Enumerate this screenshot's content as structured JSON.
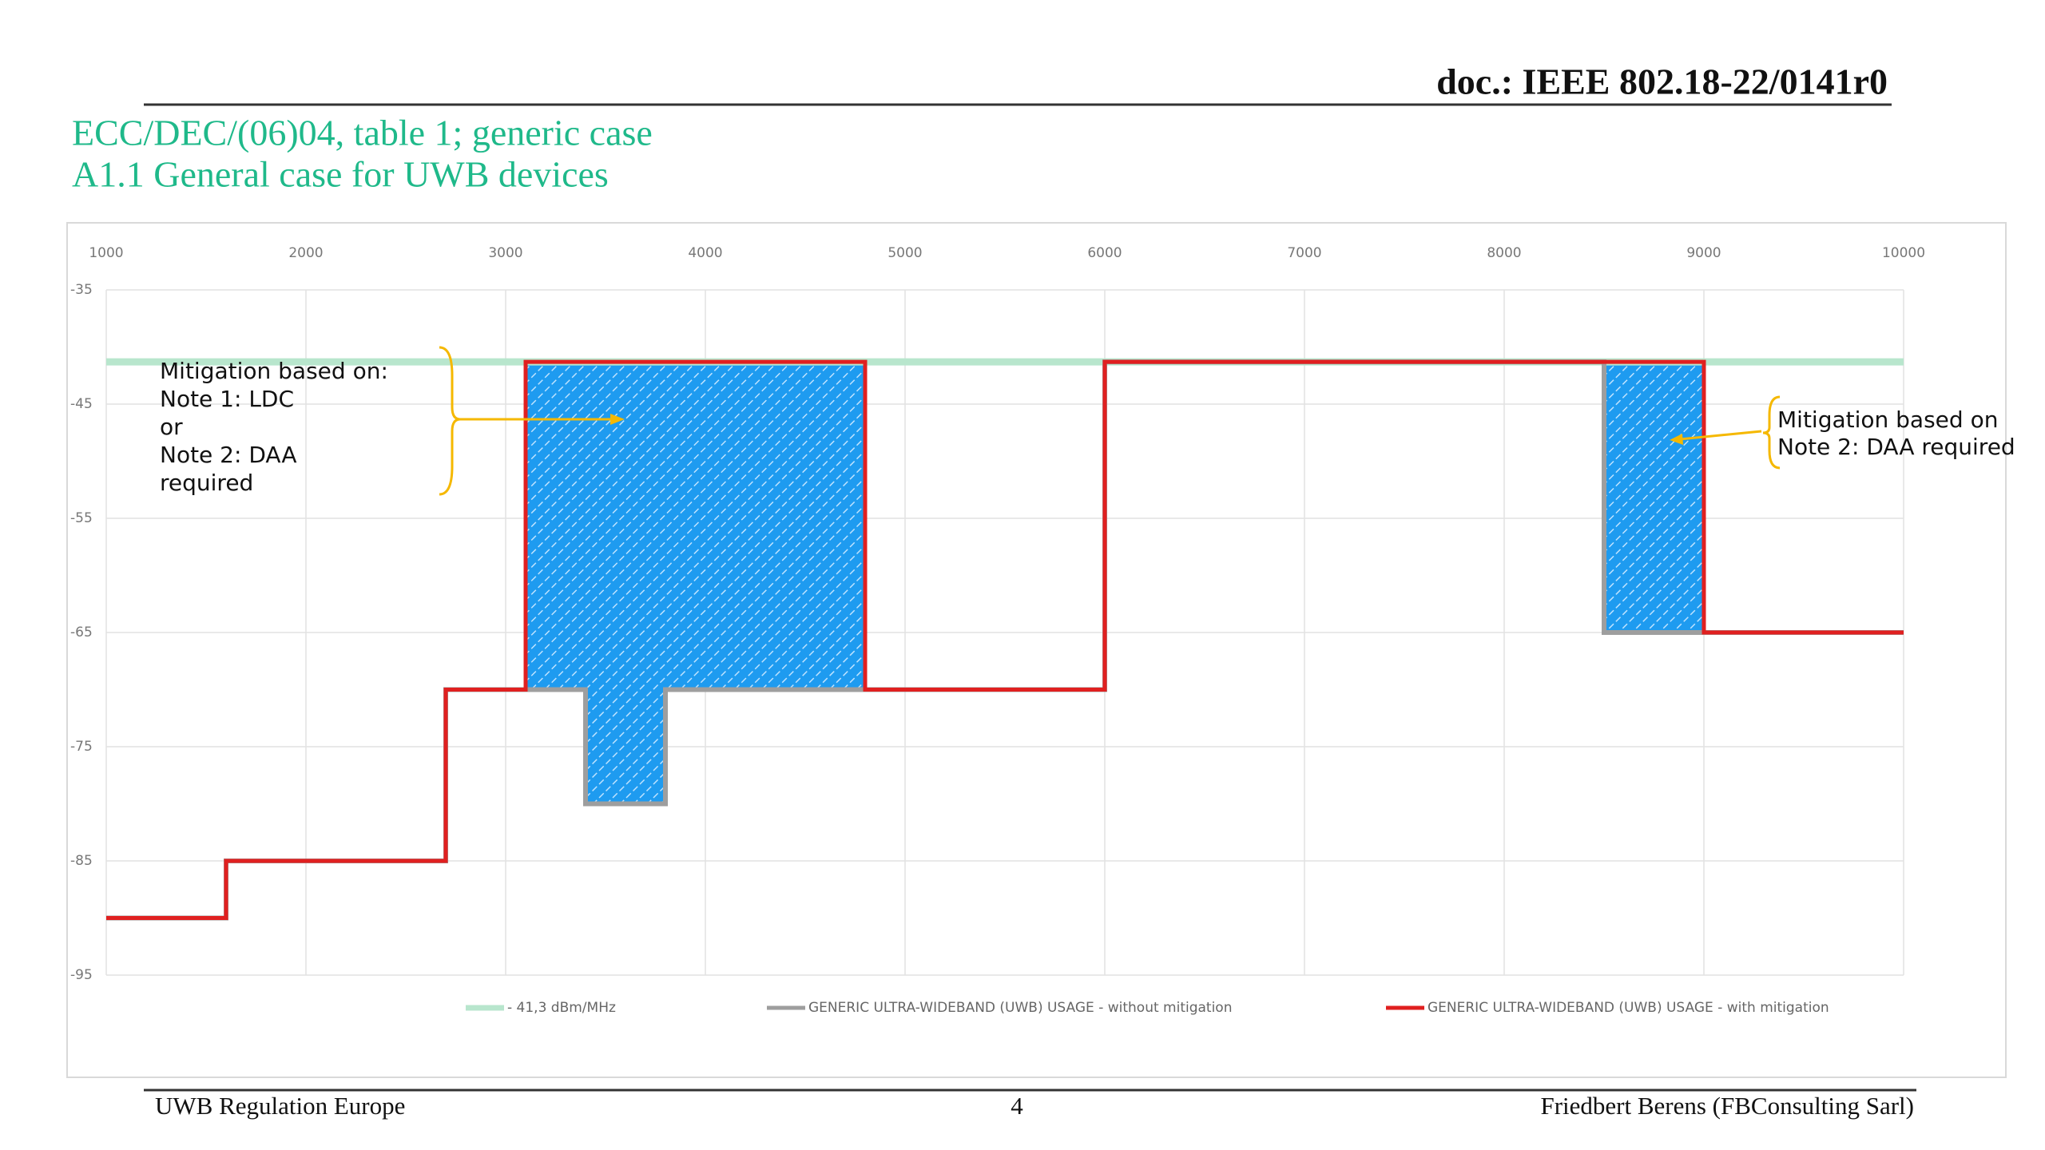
{
  "header": {
    "doc": "doc.: IEEE 802.18-22/0141r0"
  },
  "title": {
    "line1": "ECC/DEC/(06)04, table 1; generic case",
    "line2": "A1.1 General case for UWB devices"
  },
  "chart_data": {
    "type": "step",
    "xlim": [
      1000,
      10000
    ],
    "xticks": [
      1000,
      2000,
      3000,
      4000,
      5000,
      6000,
      7000,
      8000,
      9000,
      10000
    ],
    "ylim": [
      -35,
      -95
    ],
    "yticks": [
      -35,
      -45,
      -55,
      -65,
      -75,
      -85,
      -95
    ],
    "grid": true,
    "series": [
      {
        "name": "- 41,3 dBm/MHz",
        "color": "#b8e6cd",
        "x": [
          1000,
          10000
        ],
        "values": [
          -41.3,
          -41.3
        ]
      },
      {
        "name": "GENERIC ULTRA-WIDEBAND (UWB) USAGE - without mitigation",
        "color": "#9e9e9e",
        "x": [
          1000,
          1600,
          2700,
          3400,
          3800,
          6000,
          8500,
          10000
        ],
        "values": [
          -90,
          -85,
          -70,
          -80,
          -70,
          -41.3,
          -65,
          -65
        ]
      },
      {
        "name": "GENERIC ULTRA-WIDEBAND (UWB) USAGE - with mitigation",
        "color": "#e02020",
        "x": [
          1000,
          1600,
          2700,
          3100,
          4800,
          6000,
          9000,
          10000
        ],
        "values": [
          -90,
          -85,
          -70,
          -41.3,
          -70,
          -41.3,
          -65,
          -65
        ]
      }
    ],
    "shading": {
      "upper": 2,
      "lower": 1,
      "color": "#1e9bf0"
    },
    "annotations": [
      {
        "lines": [
          "Mitigation based on:",
          "Note 1: LDC",
          "or",
          "Note 2: DAA",
          "required"
        ]
      },
      {
        "lines": [
          "Mitigation based on",
          "Note 2: DAA required"
        ]
      }
    ]
  },
  "footer": {
    "left": "UWB Regulation Europe",
    "page": "4",
    "right": "Friedbert Berens (FBConsulting Sarl)"
  }
}
